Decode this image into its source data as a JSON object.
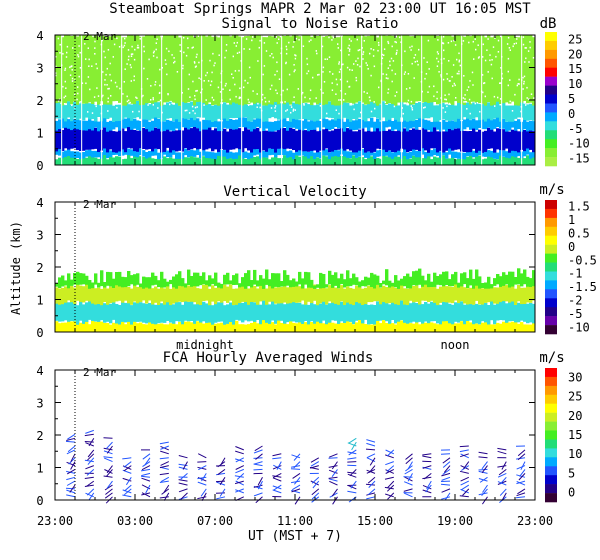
{
  "header": {
    "title": "Steamboat Springs  MAPR  2 Mar 02  23:00 UT  16:05  MST"
  },
  "chart_data": [
    {
      "type": "heatmap",
      "title": "Signal to Noise Ratio",
      "unit": "dB",
      "ylabel": "",
      "ylim": [
        0,
        4
      ],
      "yticks": [
        "0",
        "1",
        "2",
        "3",
        "4"
      ],
      "date_label": "2 Mar",
      "colorbar": {
        "labels": [
          "25",
          "20",
          "15",
          "10",
          "5",
          "0",
          "-5",
          "-10",
          "-15"
        ],
        "colors": [
          "#ffff00",
          "#ffcc00",
          "#ff9900",
          "#ff5500",
          "#ff0000",
          "#9900cc",
          "#220088",
          "#0000cc",
          "#2255ff",
          "#00aaff",
          "#33dddd",
          "#22dd77",
          "#44ee22",
          "#88ee33",
          "#aaee44"
        ]
      },
      "profile": [
        {
          "from": 0.0,
          "to": 0.25,
          "color": "#22dd77"
        },
        {
          "from": 0.25,
          "to": 0.45,
          "color": "#00aaff"
        },
        {
          "from": 0.45,
          "to": 1.1,
          "color": "#0000cc"
        },
        {
          "from": 1.1,
          "to": 1.4,
          "color": "#00aaff"
        },
        {
          "from": 1.4,
          "to": 1.9,
          "color": "#33dddd"
        },
        {
          "from": 1.9,
          "to": 4.0,
          "color": "#88ee33"
        }
      ]
    },
    {
      "type": "heatmap",
      "title": "Vertical Velocity",
      "unit": "m/s",
      "ylabel": "Altitude (km)",
      "ylim": [
        0,
        4
      ],
      "yticks": [
        "0",
        "1",
        "2",
        "3",
        "4"
      ],
      "date_label": "2 Mar",
      "time_annotations": [
        "midnight",
        "noon"
      ],
      "colorbar": {
        "labels": [
          "1.5",
          "1",
          "0.5",
          "0",
          "-0.5",
          "-1",
          "-1.5",
          "-2",
          "-5",
          "-10"
        ],
        "colors": [
          "#cc0000",
          "#ff3300",
          "#ff9900",
          "#ffcc00",
          "#ffff00",
          "#ccee22",
          "#44ee22",
          "#22dd77",
          "#33dddd",
          "#00aaff",
          "#2255ff",
          "#0000cc",
          "#220088",
          "#6600aa",
          "#330033"
        ]
      },
      "profile": [
        {
          "from": 0.0,
          "to": 0.3,
          "color": "#ffff00"
        },
        {
          "from": 0.3,
          "to": 0.9,
          "color": "#33dddd"
        },
        {
          "from": 0.9,
          "to": 1.4,
          "color": "#ccee22"
        },
        {
          "from": 1.4,
          "to": 1.9,
          "color": "#44ee22"
        }
      ]
    },
    {
      "type": "barbs",
      "title": "FCA Hourly Averaged Winds",
      "unit": "m/s",
      "xlabel": "UT  (MST + 7)",
      "ylim": [
        0,
        4
      ],
      "yticks": [
        "0",
        "1",
        "2",
        "3",
        "4"
      ],
      "date_label": "2 Mar",
      "x_ticks": [
        "23:00",
        "03:00",
        "07:00",
        "11:00",
        "15:00",
        "19:00",
        "23:00"
      ],
      "colorbar": {
        "labels": [
          "30",
          "25",
          "20",
          "15",
          "10",
          "5",
          "0"
        ],
        "colors": [
          "#ff0000",
          "#ff5500",
          "#ff9900",
          "#ffcc00",
          "#ffff00",
          "#ccee22",
          "#88ee33",
          "#44ee22",
          "#22dd77",
          "#33dddd",
          "#00aaff",
          "#2255ff",
          "#0000cc",
          "#220088",
          "#330033"
        ]
      },
      "wind_hours": [
        0,
        1,
        2,
        3,
        4,
        5,
        6,
        7,
        8,
        9,
        10,
        11,
        12,
        13,
        14,
        15,
        16,
        17,
        18,
        19,
        20,
        21,
        22,
        23,
        24
      ],
      "wind_top_km": [
        2.1,
        2.2,
        2.0,
        1.4,
        1.6,
        1.9,
        1.4,
        1.4,
        1.4,
        1.6,
        1.7,
        1.5,
        1.5,
        1.4,
        1.5,
        2.0,
        1.8,
        1.6,
        1.5,
        1.5,
        1.6,
        1.7,
        1.5,
        1.6,
        1.7
      ]
    }
  ]
}
